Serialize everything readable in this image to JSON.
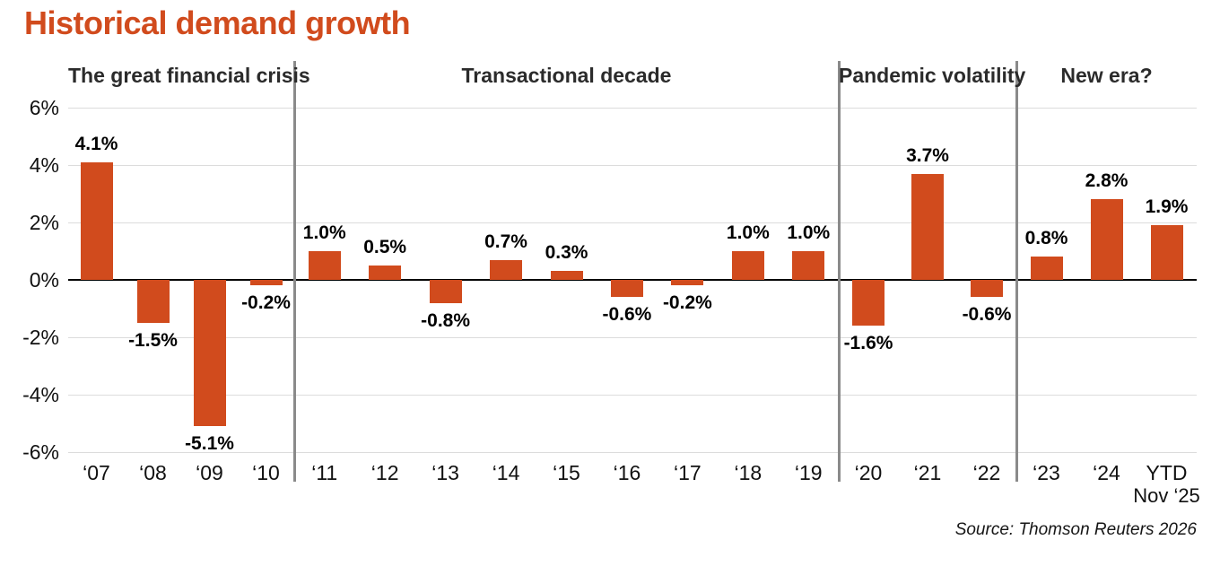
{
  "title": "Historical demand growth",
  "source_note": "Source: Thomson Reuters 2026",
  "colors": {
    "accent": "#d14b1d",
    "bar": "#d14b1d",
    "grid_line": "#dcdcdc",
    "zero_line": "#000000",
    "divider": "#8a8a8a",
    "heading_text": "#2b2b2b",
    "axis_text": "#111111"
  },
  "chart_data": {
    "type": "bar",
    "title": "Historical demand growth",
    "xlabel": "",
    "ylabel": "",
    "ylim": [
      -6,
      6
    ],
    "yticks": [
      {
        "value": 6,
        "label": "6%"
      },
      {
        "value": 4,
        "label": "4%"
      },
      {
        "value": 2,
        "label": "2%"
      },
      {
        "value": 0,
        "label": "0%"
      },
      {
        "value": -2,
        "label": "-2%"
      },
      {
        "value": -4,
        "label": "-4%"
      },
      {
        "value": -6,
        "label": "-6%"
      }
    ],
    "grid": "horizontal gridlines every 2%, bold zero baseline",
    "legend": "none",
    "sections": [
      {
        "label": "The great financial crisis",
        "bars": [
          {
            "x": "‘07",
            "value": 4.1,
            "label": "4.1%"
          },
          {
            "x": "‘08",
            "value": -1.5,
            "label": "-1.5%"
          },
          {
            "x": "‘09",
            "value": -5.1,
            "label": "-5.1%"
          },
          {
            "x": "‘10",
            "value": -0.2,
            "label": "-0.2%"
          }
        ]
      },
      {
        "label": "Transactional decade",
        "bars": [
          {
            "x": "‘11",
            "value": 1.0,
            "label": "1.0%"
          },
          {
            "x": "‘12",
            "value": 0.5,
            "label": "0.5%"
          },
          {
            "x": "‘13",
            "value": -0.8,
            "label": "-0.8%"
          },
          {
            "x": "‘14",
            "value": 0.7,
            "label": "0.7%"
          },
          {
            "x": "‘15",
            "value": 0.3,
            "label": "0.3%"
          },
          {
            "x": "‘16",
            "value": -0.6,
            "label": "-0.6%"
          },
          {
            "x": "‘17",
            "value": -0.2,
            "label": "-0.2%"
          },
          {
            "x": "‘18",
            "value": 1.0,
            "label": "1.0%"
          },
          {
            "x": "‘19",
            "value": 1.0,
            "label": "1.0%"
          }
        ]
      },
      {
        "label": "Pandemic volatility",
        "bars": [
          {
            "x": "‘20",
            "value": -1.6,
            "label": "-1.6%"
          },
          {
            "x": "‘21",
            "value": 3.7,
            "label": "3.7%"
          },
          {
            "x": "‘22",
            "value": -0.6,
            "label": "-0.6%"
          }
        ]
      },
      {
        "label": "New era?",
        "bars": [
          {
            "x": "‘23",
            "value": 0.8,
            "label": "0.8%"
          },
          {
            "x": "‘24",
            "value": 2.8,
            "label": "2.8%"
          },
          {
            "x": "YTD",
            "x_sub": "Nov ‘25",
            "value": 1.9,
            "label": "1.9%"
          }
        ]
      }
    ]
  }
}
